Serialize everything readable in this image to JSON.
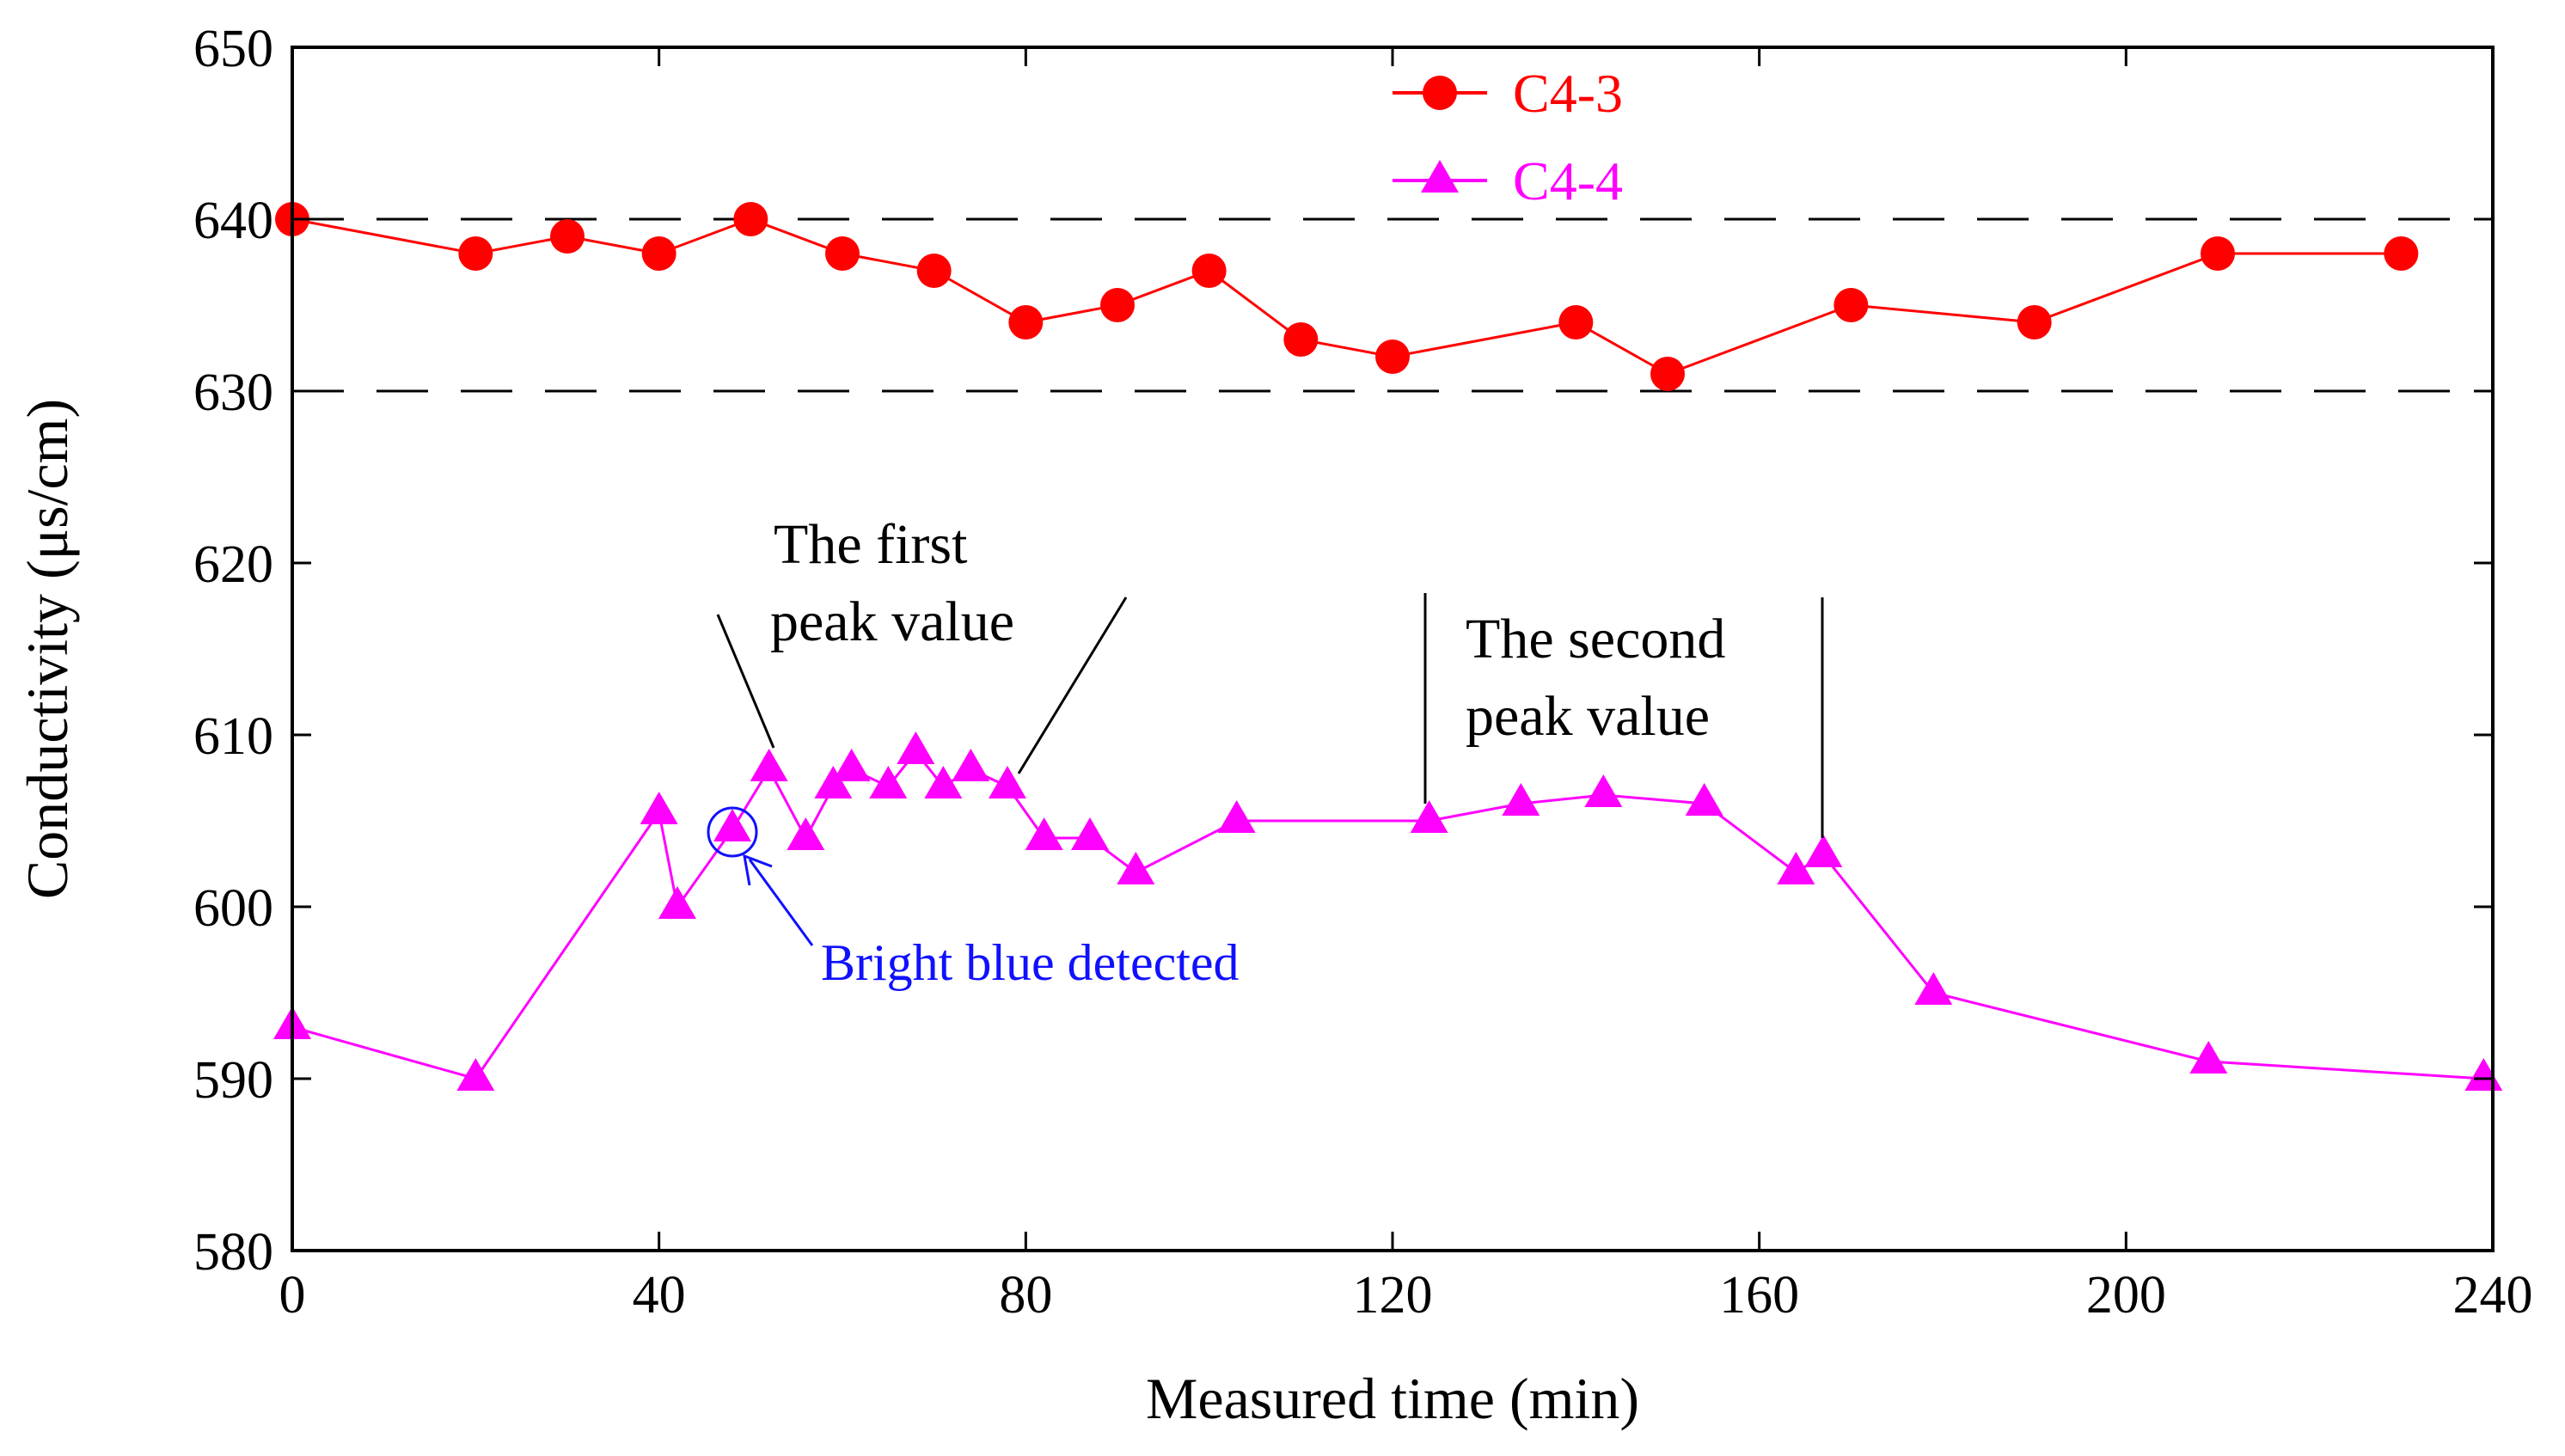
{
  "chart_data": {
    "type": "line",
    "title": "",
    "xlabel": "Measured time (min)",
    "ylabel": "Conductivity (μs/cm)",
    "xlim": [
      0,
      240
    ],
    "ylim": [
      580,
      650
    ],
    "xticks": [
      "0",
      "40",
      "80",
      "120",
      "160",
      "200",
      "240"
    ],
    "yticks": [
      "580",
      "590",
      "600",
      "610",
      "620",
      "630",
      "640",
      "650"
    ],
    "xtick_values": [
      0,
      40,
      80,
      120,
      160,
      200,
      240
    ],
    "ytick_values": [
      580,
      590,
      600,
      610,
      620,
      630,
      640,
      650
    ],
    "reference_lines": [
      640,
      630
    ],
    "legend_position": "top-center",
    "series": [
      {
        "name": "C4-3",
        "color": "#ff0000",
        "marker": "circle",
        "x": [
          0,
          20,
          30,
          40,
          50,
          60,
          70,
          80,
          90,
          100,
          110,
          120,
          140,
          150,
          170,
          190,
          210,
          230
        ],
        "y": [
          640,
          638,
          639,
          638,
          640,
          638,
          637,
          634,
          635,
          637,
          633,
          632,
          634,
          631,
          635,
          634,
          638,
          638
        ]
      },
      {
        "name": "C4-4",
        "color": "#ff00ff",
        "marker": "triangle",
        "x": [
          0,
          20,
          40,
          42,
          48,
          52,
          56,
          59,
          61,
          65,
          68,
          71,
          74,
          78,
          82,
          87,
          92,
          103,
          124,
          134,
          143,
          154,
          164,
          167,
          179,
          209,
          239
        ],
        "y": [
          593,
          590,
          605.5,
          600,
          604.5,
          608,
          604,
          607,
          608,
          607,
          609,
          607,
          608,
          607,
          604,
          604,
          602,
          605,
          605,
          606,
          606.5,
          606,
          602,
          603,
          595,
          591,
          590
        ]
      }
    ],
    "annotations": {
      "first_peak_line1": "The first",
      "first_peak_line2": "peak value",
      "second_peak_line1": "The second",
      "second_peak_line2": "peak value",
      "bright_blue": "Bright blue detected"
    }
  }
}
